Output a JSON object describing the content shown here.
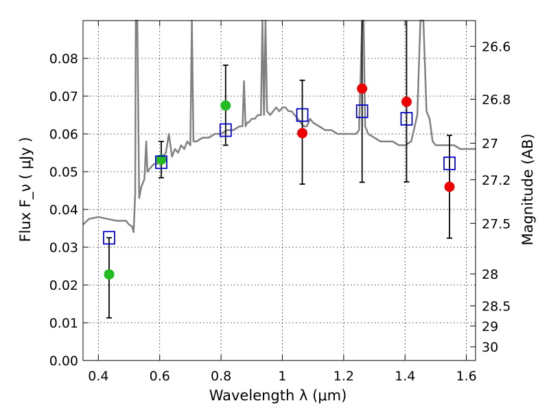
{
  "chart_data": {
    "type": "scatter",
    "xlabel": "Wavelength  λ (μm)",
    "ylabel": "Flux  F_ν  ( μJy )",
    "ylabel_right": "Magnitude (AB)",
    "xlim": [
      0.35,
      1.63
    ],
    "ylim": [
      0.0,
      0.09
    ],
    "grid": true,
    "x_ticks": [
      {
        "value": 0.4,
        "label": "0.4"
      },
      {
        "value": 0.6,
        "label": "0.6"
      },
      {
        "value": 0.8,
        "label": "0.8"
      },
      {
        "value": 1.0,
        "label": "1"
      },
      {
        "value": 1.2,
        "label": "1.2"
      },
      {
        "value": 1.4,
        "label": "1.4"
      },
      {
        "value": 1.6,
        "label": "1.6"
      }
    ],
    "y_ticks": [
      {
        "value": 0.0,
        "label": "0.00"
      },
      {
        "value": 0.01,
        "label": "0.01"
      },
      {
        "value": 0.02,
        "label": "0.02"
      },
      {
        "value": 0.03,
        "label": "0.03"
      },
      {
        "value": 0.04,
        "label": "0.04"
      },
      {
        "value": 0.05,
        "label": "0.05"
      },
      {
        "value": 0.06,
        "label": "0.06"
      },
      {
        "value": 0.07,
        "label": "0.07"
      },
      {
        "value": 0.08,
        "label": "0.08"
      }
    ],
    "right_ticks": [
      {
        "mag": 26.6,
        "label": "26.6"
      },
      {
        "mag": 26.8,
        "label": "26.8"
      },
      {
        "mag": 27.0,
        "label": "27"
      },
      {
        "mag": 27.2,
        "label": "27.2"
      },
      {
        "mag": 27.5,
        "label": "27.5"
      },
      {
        "mag": 28.0,
        "label": "28"
      },
      {
        "mag": 28.5,
        "label": "28.5"
      },
      {
        "mag": 29.0,
        "label": "29"
      },
      {
        "mag": 30.0,
        "label": "30"
      }
    ],
    "series": [
      {
        "kind": "line",
        "color": "#808080",
        "x": [
          0.35,
          0.37,
          0.4,
          0.43,
          0.46,
          0.49,
          0.5,
          0.51,
          0.515,
          0.52,
          0.522,
          0.527,
          0.533,
          0.54,
          0.55,
          0.556,
          0.56,
          0.57,
          0.58,
          0.59,
          0.6,
          0.62,
          0.63,
          0.64,
          0.65,
          0.66,
          0.67,
          0.68,
          0.69,
          0.7,
          0.705,
          0.71,
          0.72,
          0.74,
          0.76,
          0.78,
          0.8,
          0.82,
          0.84,
          0.86,
          0.87,
          0.875,
          0.88,
          0.885,
          0.89,
          0.9,
          0.91,
          0.92,
          0.93,
          0.935,
          0.94,
          0.945,
          0.95,
          0.96,
          0.97,
          0.98,
          0.99,
          1.0,
          1.01,
          1.02,
          1.03,
          1.04,
          1.05,
          1.06,
          1.07,
          1.08,
          1.09,
          1.1,
          1.12,
          1.14,
          1.16,
          1.18,
          1.2,
          1.22,
          1.24,
          1.25,
          1.26,
          1.265,
          1.27,
          1.28,
          1.3,
          1.32,
          1.34,
          1.36,
          1.38,
          1.4,
          1.42,
          1.44,
          1.45,
          1.46,
          1.47,
          1.48,
          1.49,
          1.5,
          1.52,
          1.54,
          1.56,
          1.58,
          1.6,
          1.62,
          1.63
        ],
        "y": [
          0.036,
          0.0375,
          0.038,
          0.0375,
          0.037,
          0.037,
          0.036,
          0.0355,
          0.034,
          0.044,
          0.09,
          0.09,
          0.043,
          0.046,
          0.048,
          0.058,
          0.05,
          0.051,
          0.052,
          0.052,
          0.053,
          0.055,
          0.06,
          0.054,
          0.056,
          0.055,
          0.057,
          0.056,
          0.058,
          0.057,
          0.09,
          0.058,
          0.058,
          0.059,
          0.059,
          0.06,
          0.06,
          0.061,
          0.061,
          0.062,
          0.062,
          0.074,
          0.062,
          0.063,
          0.063,
          0.064,
          0.064,
          0.065,
          0.065,
          0.09,
          0.065,
          0.09,
          0.066,
          0.065,
          0.066,
          0.067,
          0.066,
          0.067,
          0.067,
          0.066,
          0.066,
          0.065,
          0.064,
          0.063,
          0.062,
          0.062,
          0.064,
          0.063,
          0.062,
          0.061,
          0.061,
          0.06,
          0.06,
          0.06,
          0.06,
          0.061,
          0.09,
          0.09,
          0.062,
          0.06,
          0.059,
          0.058,
          0.058,
          0.058,
          0.057,
          0.057,
          0.058,
          0.065,
          0.09,
          0.09,
          0.066,
          0.064,
          0.058,
          0.057,
          0.057,
          0.057,
          0.057,
          0.056,
          0.056,
          0.056,
          0.056
        ]
      },
      {
        "kind": "scatter",
        "marker": "circle",
        "x": [
          0.435,
          0.605,
          0.815
        ],
        "y": [
          0.0228,
          0.0532,
          0.0675
        ],
        "colors": [
          "#22bb22",
          "#22bb22",
          "#22bb22"
        ]
      },
      {
        "kind": "scatter",
        "marker": "circle",
        "x": [
          1.065,
          1.26,
          1.405,
          1.545
        ],
        "y": [
          0.0602,
          0.072,
          0.0685,
          0.046
        ],
        "colors": [
          "#ee0000",
          "#ee0000",
          "#ee0000",
          "#ee0000"
        ]
      },
      {
        "kind": "scatter",
        "marker": "open-square",
        "color": "#0000cc",
        "x": [
          0.435,
          0.605,
          0.815,
          1.065,
          1.26,
          1.405,
          1.545
        ],
        "y": [
          0.0325,
          0.0525,
          0.061,
          0.065,
          0.066,
          0.064,
          0.0522
        ]
      },
      {
        "kind": "errorbar",
        "color": "#000000",
        "x": [
          0.435,
          0.605,
          0.815,
          1.065,
          1.26,
          1.405,
          1.545
        ],
        "y_low": [
          0.0113,
          0.0484,
          0.057,
          0.0467,
          0.0472,
          0.0473,
          0.0324
        ],
        "y_high": [
          0.0325,
          0.058,
          0.0782,
          0.0742,
          0.09,
          0.09,
          0.0596
        ]
      }
    ]
  }
}
